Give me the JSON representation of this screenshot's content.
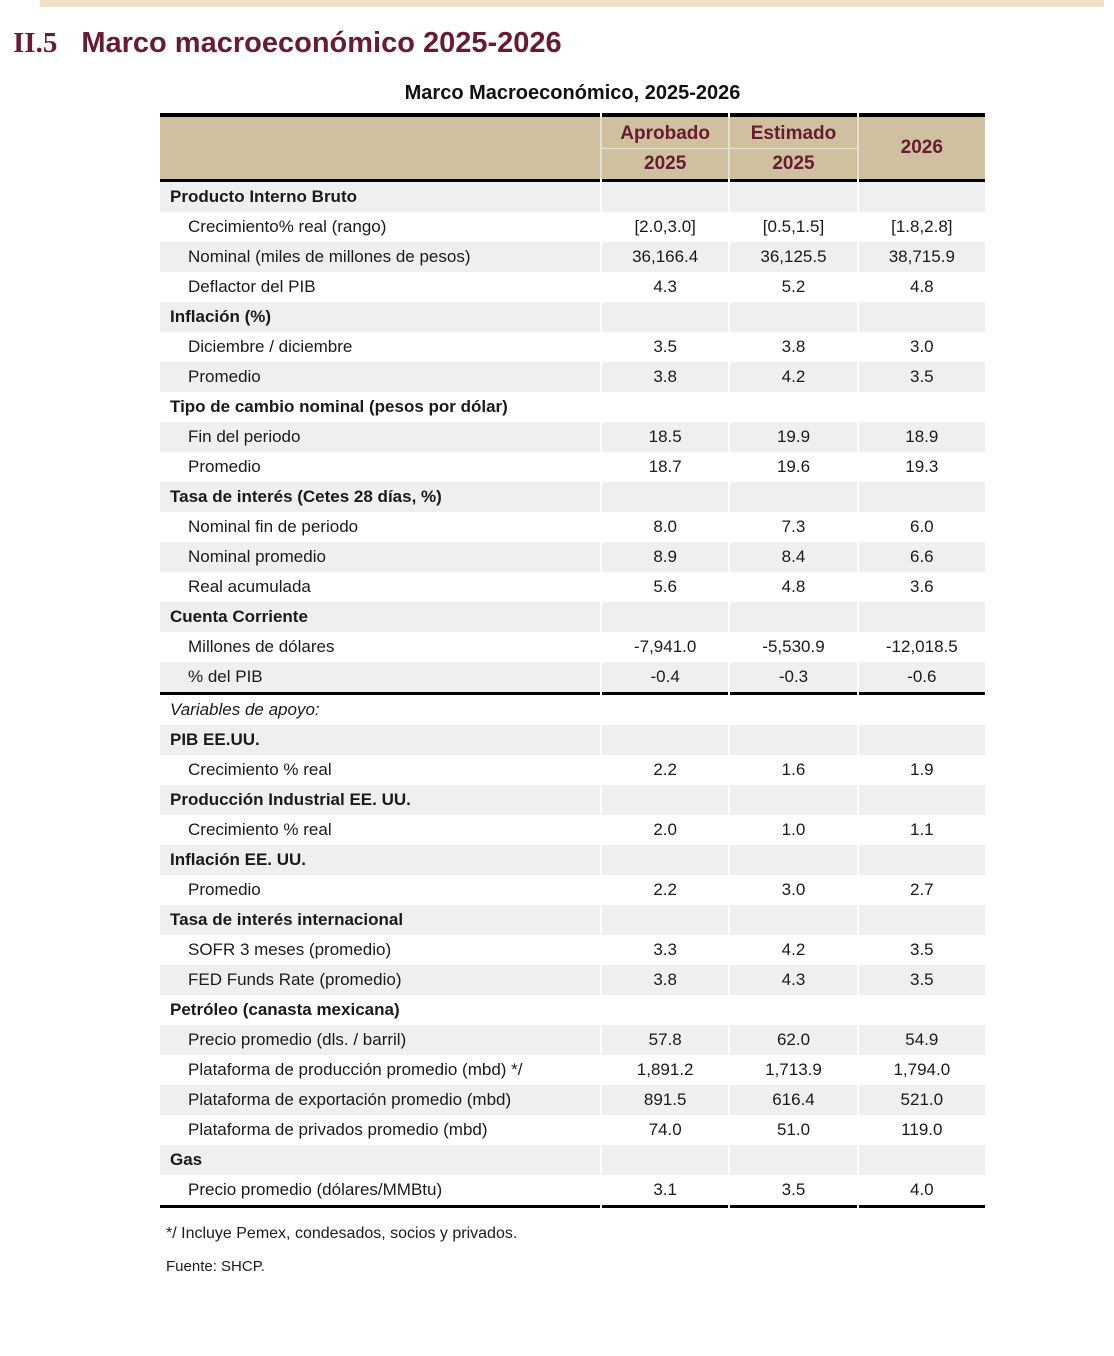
{
  "page": {
    "heading_number": "II.5",
    "heading_title": "Marco macroeconómico 2025-2026",
    "table_title": "Marco Macroeconómico, 2025-2026",
    "footnote_1": "*/ Incluye Pemex, condesados, socios y privados.",
    "footnote_2": "Fuente: SHCP."
  },
  "colors": {
    "heading_maroon": "#681b31",
    "header_bg_tan": "#cfc0a0",
    "zebra_row_gray": "#efefef",
    "top_strip_beige": "#ebe3c3",
    "text_black": "#1a1a1a"
  },
  "table": {
    "header": {
      "col1_line1": "Aprobado",
      "col1_line2": "2025",
      "col2_line1": "Estimado",
      "col2_line2": "2025",
      "col3": "2026"
    },
    "rows": [
      {
        "type": "section",
        "label": "Producto Interno Bruto",
        "values": [
          "",
          "",
          ""
        ]
      },
      {
        "type": "item",
        "label": "Crecimiento% real (rango)",
        "values": [
          "[2.0,3.0]",
          "[0.5,1.5]",
          "[1.8,2.8]"
        ]
      },
      {
        "type": "item",
        "label": "Nominal (miles de millones de pesos)",
        "values": [
          "36,166.4",
          "36,125.5",
          "38,715.9"
        ]
      },
      {
        "type": "item",
        "label": "Deflactor del PIB",
        "values": [
          "4.3",
          "5.2",
          "4.8"
        ]
      },
      {
        "type": "section",
        "label": "Inflación (%)",
        "values": [
          "",
          "",
          ""
        ]
      },
      {
        "type": "item",
        "label": "Diciembre / diciembre",
        "values": [
          "3.5",
          "3.8",
          "3.0"
        ]
      },
      {
        "type": "item",
        "label": "Promedio",
        "values": [
          "3.8",
          "4.2",
          "3.5"
        ]
      },
      {
        "type": "section",
        "label": "Tipo de cambio nominal (pesos por dólar)",
        "values": [
          "",
          "",
          ""
        ]
      },
      {
        "type": "item",
        "label": "Fin del periodo",
        "values": [
          "18.5",
          "19.9",
          "18.9"
        ]
      },
      {
        "type": "item",
        "label": "Promedio",
        "values": [
          "18.7",
          "19.6",
          "19.3"
        ]
      },
      {
        "type": "section",
        "label": "Tasa de interés (Cetes 28 días, %)",
        "values": [
          "",
          "",
          ""
        ]
      },
      {
        "type": "item",
        "label": "Nominal fin de periodo",
        "values": [
          "8.0",
          "7.3",
          "6.0"
        ]
      },
      {
        "type": "item",
        "label": "Nominal promedio",
        "values": [
          "8.9",
          "8.4",
          "6.6"
        ]
      },
      {
        "type": "item",
        "label": "Real acumulada",
        "values": [
          "5.6",
          "4.8",
          "3.6"
        ]
      },
      {
        "type": "section",
        "label": "Cuenta Corriente",
        "values": [
          "",
          "",
          ""
        ]
      },
      {
        "type": "item",
        "label": "Millones de dólares",
        "values": [
          "-7,941.0",
          "-5,530.9",
          "-12,018.5"
        ]
      },
      {
        "type": "item",
        "label": "% del PIB",
        "values": [
          "-0.4",
          "-0.3",
          "-0.6"
        ],
        "divider_after": true
      },
      {
        "type": "note",
        "label": "Variables de apoyo:",
        "values": [
          "",
          "",
          ""
        ]
      },
      {
        "type": "section",
        "label": "PIB EE.UU.",
        "values": [
          "",
          "",
          ""
        ]
      },
      {
        "type": "item",
        "label": "Crecimiento % real",
        "values": [
          "2.2",
          "1.6",
          "1.9"
        ]
      },
      {
        "type": "section",
        "label": "Producción Industrial EE. UU.",
        "values": [
          "",
          "",
          ""
        ]
      },
      {
        "type": "item",
        "label": "Crecimiento % real",
        "values": [
          "2.0",
          "1.0",
          "1.1"
        ]
      },
      {
        "type": "section",
        "label": "Inflación EE. UU.",
        "values": [
          "",
          "",
          ""
        ]
      },
      {
        "type": "item",
        "label": "Promedio",
        "values": [
          "2.2",
          "3.0",
          "2.7"
        ]
      },
      {
        "type": "section",
        "label": "Tasa de interés internacional",
        "values": [
          "",
          "",
          ""
        ]
      },
      {
        "type": "item",
        "label": "SOFR 3 meses (promedio)",
        "values": [
          "3.3",
          "4.2",
          "3.5"
        ]
      },
      {
        "type": "item",
        "label": "FED Funds Rate (promedio)",
        "values": [
          "3.8",
          "4.3",
          "3.5"
        ]
      },
      {
        "type": "section",
        "label": "Petróleo (canasta mexicana)",
        "values": [
          "",
          "",
          ""
        ]
      },
      {
        "type": "item",
        "label": "Precio promedio (dls. / barril)",
        "values": [
          "57.8",
          "62.0",
          "54.9"
        ]
      },
      {
        "type": "item",
        "label": "Plataforma de producción promedio (mbd) */",
        "values": [
          "1,891.2",
          "1,713.9",
          "1,794.0"
        ]
      },
      {
        "type": "item",
        "label": "Plataforma de exportación promedio (mbd)",
        "values": [
          "891.5",
          "616.4",
          "521.0"
        ]
      },
      {
        "type": "item",
        "label": "Plataforma de privados promedio (mbd)",
        "values": [
          "74.0",
          "51.0",
          "119.0"
        ]
      },
      {
        "type": "section",
        "label": "Gas",
        "values": [
          "",
          "",
          ""
        ]
      },
      {
        "type": "item",
        "label": "Precio promedio (dólares/MMBtu)",
        "values": [
          "3.1",
          "3.5",
          "4.0"
        ]
      }
    ]
  }
}
